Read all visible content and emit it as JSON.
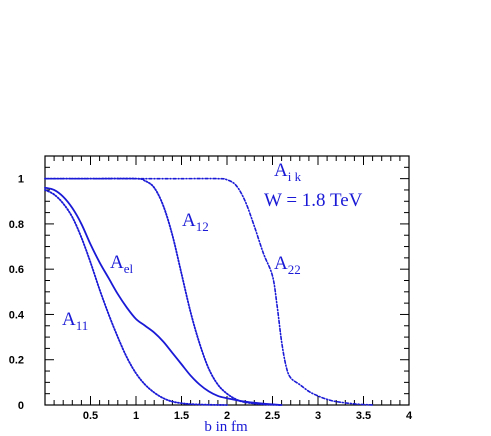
{
  "chart_data": {
    "type": "line",
    "xlabel": "b in fm",
    "ylabel": "",
    "xlim": [
      0,
      4
    ],
    "ylim": [
      0,
      1.1
    ],
    "x_ticks": [
      "0.5",
      "1",
      "1.5",
      "2",
      "2.5",
      "3",
      "3.5",
      "4"
    ],
    "y_ticks": [
      "0",
      "0.2",
      "0.4",
      "0.6",
      "0.8",
      "1"
    ],
    "annotations": {
      "title_main": "A",
      "title_sub": "i k",
      "energy": "W = 1.8 TeV",
      "a12_main": "A",
      "a12_sub": "12",
      "a22_main": "A",
      "a22_sub": "22",
      "ael_main": "A",
      "ael_sub": "el",
      "a11_main": "A",
      "a11_sub": "11"
    },
    "colors": {
      "curve": "#1a1ad6",
      "axes": "#000000"
    },
    "series": [
      {
        "name": "A_el",
        "style": "solid",
        "x": [
          0,
          0.1,
          0.2,
          0.3,
          0.4,
          0.5,
          0.6,
          0.7,
          0.8,
          0.9,
          1.0,
          1.1,
          1.2,
          1.3,
          1.4,
          1.5,
          1.6,
          1.7,
          1.8,
          1.9,
          2.0,
          2.2,
          2.4,
          2.6
        ],
        "y": [
          0.96,
          0.95,
          0.92,
          0.87,
          0.8,
          0.71,
          0.63,
          0.56,
          0.49,
          0.43,
          0.38,
          0.35,
          0.32,
          0.28,
          0.23,
          0.18,
          0.13,
          0.09,
          0.06,
          0.04,
          0.03,
          0.015,
          0.006,
          0.0
        ]
      },
      {
        "name": "A_11",
        "style": "dotted",
        "x": [
          0,
          0.1,
          0.2,
          0.3,
          0.4,
          0.5,
          0.6,
          0.7,
          0.8,
          0.9,
          1.0,
          1.1,
          1.2,
          1.3,
          1.4,
          1.5,
          1.6,
          1.8,
          2.0
        ],
        "y": [
          0.95,
          0.93,
          0.89,
          0.83,
          0.74,
          0.63,
          0.51,
          0.4,
          0.3,
          0.21,
          0.14,
          0.09,
          0.055,
          0.03,
          0.015,
          0.008,
          0.004,
          0.001,
          0.0
        ]
      },
      {
        "name": "A_12",
        "style": "dotted",
        "x": [
          0,
          0.5,
          1.0,
          1.1,
          1.2,
          1.3,
          1.4,
          1.5,
          1.6,
          1.7,
          1.8,
          1.9,
          2.0,
          2.1,
          2.2,
          2.4,
          2.6
        ],
        "y": [
          1.0,
          1.0,
          1.0,
          0.99,
          0.96,
          0.88,
          0.75,
          0.58,
          0.41,
          0.27,
          0.16,
          0.09,
          0.05,
          0.025,
          0.012,
          0.003,
          0.0
        ]
      },
      {
        "name": "A_22",
        "style": "dashdot",
        "x": [
          0,
          0.5,
          1.0,
          1.5,
          1.9,
          2.0,
          2.1,
          2.2,
          2.3,
          2.4,
          2.5,
          2.55,
          2.6,
          2.65,
          2.7,
          2.8,
          2.9,
          3.0,
          3.1,
          3.2,
          3.4,
          3.6
        ],
        "y": [
          1.0,
          1.0,
          1.0,
          1.0,
          1.0,
          0.995,
          0.97,
          0.9,
          0.79,
          0.67,
          0.57,
          0.44,
          0.28,
          0.17,
          0.12,
          0.09,
          0.06,
          0.04,
          0.025,
          0.015,
          0.005,
          0.0
        ]
      }
    ]
  }
}
